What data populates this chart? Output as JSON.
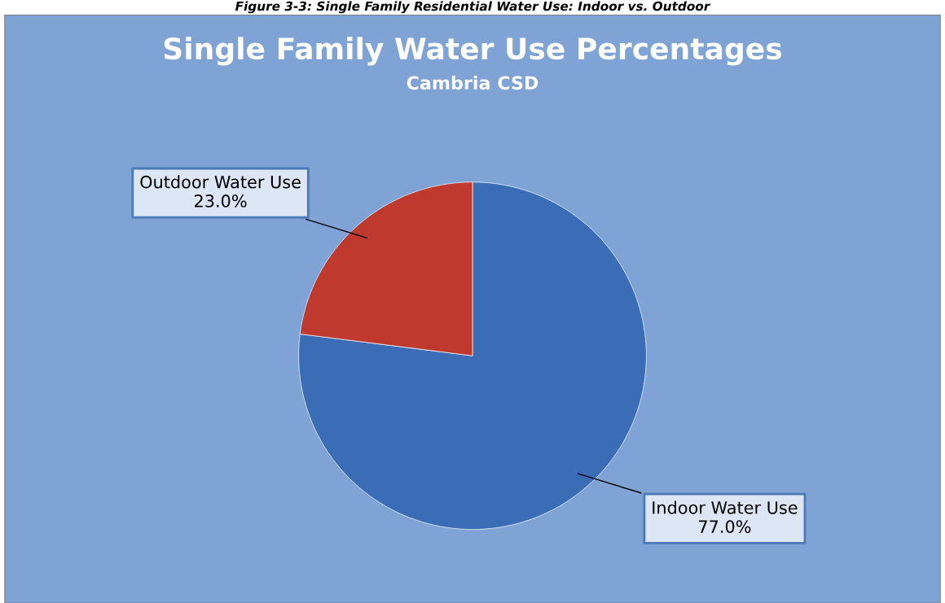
{
  "chart_data": {
    "type": "pie",
    "title": "Single Family Water Use Percentages",
    "subtitle": "Cambria CSD",
    "annotations": [
      "Figure 3-3: Single Family Residential Water Use: Indoor vs. Outdoor"
    ],
    "categories": [
      "Indoor Water Use",
      "Outdoor Water Use"
    ],
    "values": [
      77.0,
      23.0
    ],
    "colors": [
      "#3a6db5",
      "#c0392f"
    ],
    "value_labels": [
      "77.0%",
      "23.0%"
    ],
    "legend": false
  }
}
